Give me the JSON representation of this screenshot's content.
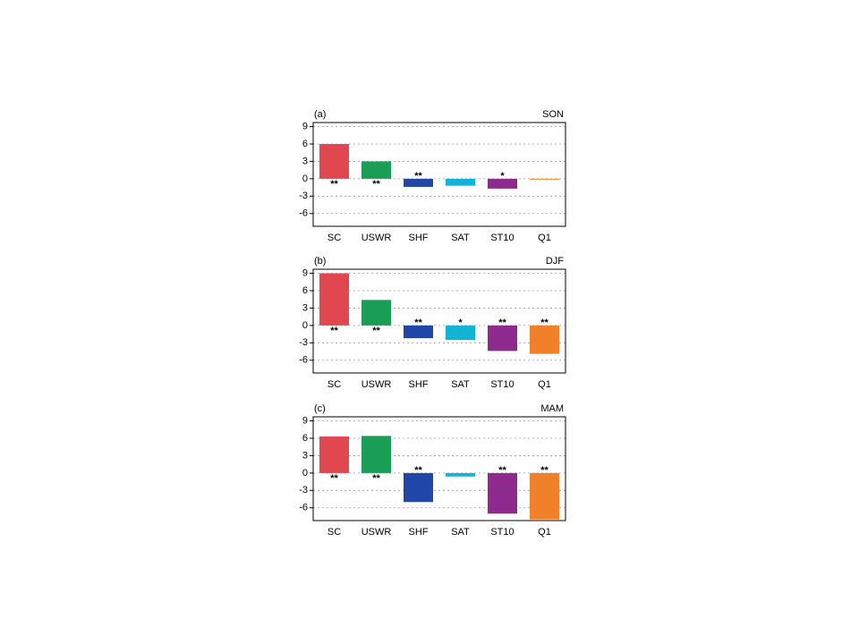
{
  "chart_data": [
    {
      "type": "bar",
      "title": "(a)",
      "season": "SON",
      "categories": [
        "SC",
        "USWR",
        "SHF",
        "SAT",
        "ST10",
        "Q1"
      ],
      "values": [
        6,
        3,
        -1.4,
        -1.2,
        -1.7,
        -0.1
      ],
      "significance": [
        "**",
        "**",
        "**",
        null,
        "*",
        null
      ],
      "colors": [
        "#e0474f",
        "#1a9e55",
        "#2046a8",
        "#12b3d4",
        "#8e2a8e",
        "#f0802a"
      ],
      "ylim": [
        -8.2,
        9.7
      ],
      "yticks": [
        9,
        6,
        3,
        0,
        -3,
        -6
      ],
      "grid": true
    },
    {
      "type": "bar",
      "title": "(b)",
      "season": "DJF",
      "categories": [
        "SC",
        "USWR",
        "SHF",
        "SAT",
        "ST10",
        "Q1"
      ],
      "values": [
        9,
        4.4,
        -2.2,
        -2.5,
        -4.4,
        -4.9
      ],
      "significance": [
        "**",
        "**",
        "**",
        "*",
        "**",
        "**"
      ],
      "colors": [
        "#e0474f",
        "#1a9e55",
        "#2046a8",
        "#12b3d4",
        "#8e2a8e",
        "#f0802a"
      ],
      "ylim": [
        -8.2,
        9.7
      ],
      "yticks": [
        9,
        6,
        3,
        0,
        -3,
        -6
      ],
      "grid": true
    },
    {
      "type": "bar",
      "title": "(c)",
      "season": "MAM",
      "categories": [
        "SC",
        "USWR",
        "SHF",
        "SAT",
        "ST10",
        "Q1"
      ],
      "values": [
        6.3,
        6.4,
        -5,
        -0.6,
        -7,
        -8
      ],
      "significance": [
        "**",
        "**",
        "**",
        null,
        "**",
        "**"
      ],
      "colors": [
        "#e0474f",
        "#1a9e55",
        "#2046a8",
        "#12b3d4",
        "#8e2a8e",
        "#f0802a"
      ],
      "ylim": [
        -8.2,
        9.7
      ],
      "yticks": [
        9,
        6,
        3,
        0,
        -3,
        -6
      ],
      "grid": true
    }
  ]
}
